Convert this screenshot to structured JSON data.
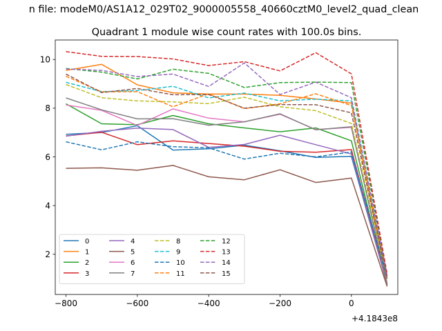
{
  "figure": {
    "suptitle": "n file: modeM0/AS1A12_029T02_9000005558_40660cztM0_level2_quad_clean",
    "offset_label": "+4.1843e8"
  },
  "chart_data": {
    "type": "line",
    "title": "Quadrant 1 module wise count rates with 100.0s bins.",
    "xlabel": "",
    "ylabel": "",
    "xlim": [
      -830,
      130
    ],
    "ylim": [
      0.35,
      10.8
    ],
    "x_offset": 418430000,
    "x_ticks": [
      -800,
      -600,
      -400,
      -200,
      0
    ],
    "x_tick_labels": [
      "−800",
      "−600",
      "−400",
      "−200",
      "0"
    ],
    "y_ticks": [
      2,
      4,
      6,
      8,
      10
    ],
    "y_tick_labels": [
      "2",
      "4",
      "6",
      "8",
      "10"
    ],
    "grid": false,
    "legend": {
      "placement": "lower-left",
      "columns": 4
    },
    "x": [
      -800,
      -700,
      -600,
      -500,
      -400,
      -300,
      -200,
      -100,
      0,
      100
    ],
    "series": [
      {
        "name": "0",
        "color": "#1f77b4",
        "dash": "solid",
        "values": [
          6.93,
          7.0,
          7.28,
          6.28,
          6.33,
          6.48,
          6.25,
          5.98,
          6.02,
          0.78
        ]
      },
      {
        "name": "1",
        "color": "#ff7f0e",
        "dash": "solid",
        "values": [
          9.55,
          9.8,
          8.96,
          8.63,
          8.58,
          8.58,
          8.53,
          8.38,
          8.21,
          0.82
        ]
      },
      {
        "name": "2",
        "color": "#2ca02c",
        "dash": "solid",
        "values": [
          8.18,
          7.36,
          7.32,
          7.7,
          7.36,
          7.19,
          7.03,
          7.19,
          6.66,
          0.72
        ]
      },
      {
        "name": "3",
        "color": "#d62728",
        "dash": "solid",
        "values": [
          6.86,
          7.01,
          6.5,
          6.66,
          6.55,
          6.44,
          6.23,
          6.19,
          6.3,
          0.74
        ]
      },
      {
        "name": "4",
        "color": "#9467bd",
        "dash": "solid",
        "values": [
          6.85,
          7.05,
          7.18,
          7.12,
          6.39,
          6.51,
          6.89,
          6.5,
          6.12,
          0.77
        ]
      },
      {
        "name": "5",
        "color": "#8c564b",
        "dash": "solid",
        "values": [
          5.53,
          5.55,
          5.45,
          5.65,
          5.18,
          5.06,
          5.47,
          4.95,
          5.13,
          0.68
        ]
      },
      {
        "name": "6",
        "color": "#e377c2",
        "dash": "solid",
        "values": [
          8.13,
          7.91,
          7.29,
          7.97,
          7.59,
          7.44,
          7.75,
          7.12,
          7.21,
          0.8
        ]
      },
      {
        "name": "7",
        "color": "#7f7f7f",
        "dash": "solid",
        "values": [
          8.42,
          7.93,
          7.56,
          7.57,
          7.3,
          7.44,
          7.77,
          7.11,
          7.24,
          0.76
        ]
      },
      {
        "name": "8",
        "color": "#bcbd22",
        "dash": "dashed",
        "values": [
          8.97,
          8.43,
          8.3,
          8.26,
          8.19,
          8.45,
          8.06,
          7.9,
          7.37,
          0.98
        ]
      },
      {
        "name": "9",
        "color": "#17becf",
        "dash": "dashed",
        "values": [
          9.06,
          8.68,
          8.72,
          8.9,
          8.42,
          8.62,
          8.3,
          8.37,
          8.3,
          1.0
        ]
      },
      {
        "name": "10",
        "color": "#1f77b4",
        "dash": "dashed",
        "values": [
          6.62,
          6.29,
          6.62,
          6.42,
          6.37,
          5.91,
          6.15,
          6.0,
          6.2,
          1.02
        ]
      },
      {
        "name": "11",
        "color": "#ff7f0e",
        "dash": "dashed",
        "values": [
          9.31,
          8.67,
          8.68,
          8.06,
          8.59,
          7.98,
          8.18,
          8.59,
          8.11,
          1.05
        ]
      },
      {
        "name": "12",
        "color": "#2ca02c",
        "dash": "dashed",
        "values": [
          9.63,
          9.48,
          9.2,
          9.6,
          9.43,
          8.85,
          9.05,
          9.07,
          9.05,
          1.1
        ]
      },
      {
        "name": "13",
        "color": "#d62728",
        "dash": "dashed",
        "values": [
          10.32,
          10.13,
          10.12,
          10.02,
          9.75,
          9.91,
          9.53,
          10.28,
          9.41,
          1.2
        ]
      },
      {
        "name": "14",
        "color": "#9467bd",
        "dash": "dashed",
        "values": [
          9.61,
          9.55,
          9.3,
          9.4,
          8.89,
          9.86,
          8.56,
          9.07,
          8.43,
          1.12
        ]
      },
      {
        "name": "15",
        "color": "#8c564b",
        "dash": "dashed",
        "values": [
          9.4,
          8.64,
          8.81,
          8.55,
          8.56,
          8.0,
          8.15,
          8.14,
          7.81,
          1.0
        ]
      }
    ]
  }
}
